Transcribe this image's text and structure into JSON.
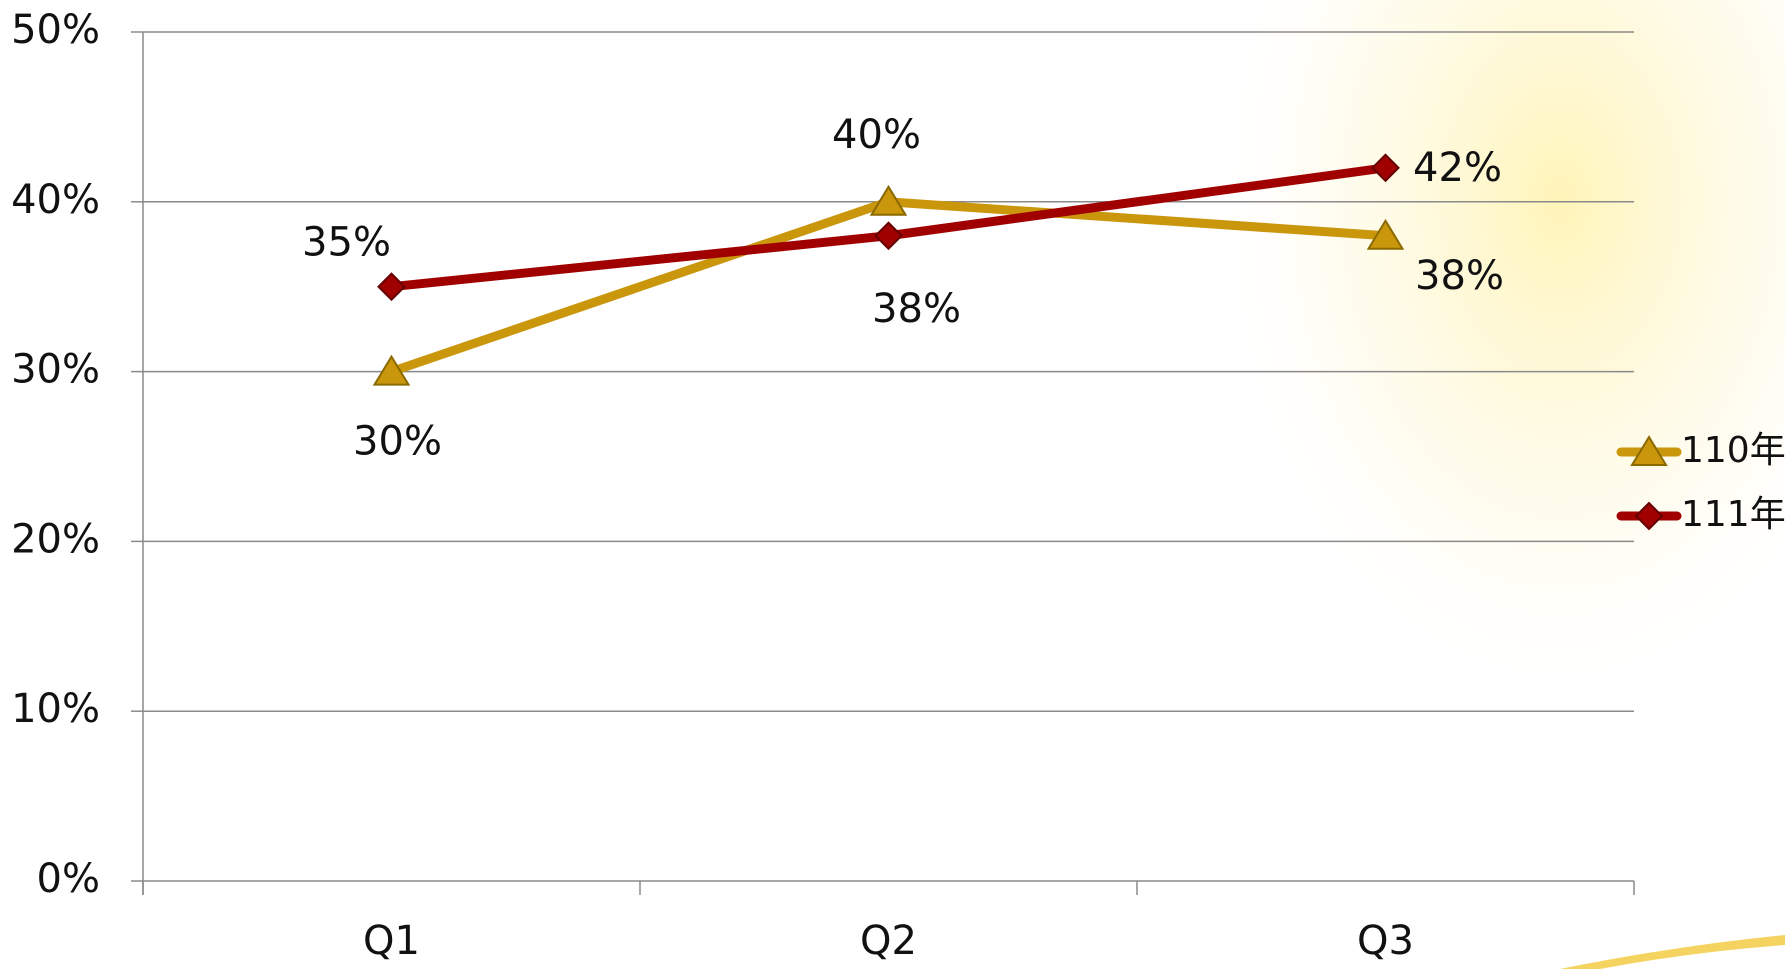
{
  "chart_data": {
    "type": "line",
    "categories": [
      "Q1",
      "Q2",
      "Q3"
    ],
    "series": [
      {
        "name": "110年",
        "color": "#c9960c",
        "values": [
          30,
          40,
          38
        ],
        "value_labels": [
          "30%",
          "40%",
          "38%"
        ]
      },
      {
        "name": "111年",
        "color": "#a00000",
        "values": [
          35,
          38,
          42
        ],
        "value_labels": [
          "35%",
          "38%",
          "42%"
        ]
      }
    ],
    "ylim": [
      0,
      50
    ],
    "yticks": [
      {
        "value": 0,
        "label": "0%"
      },
      {
        "value": 10,
        "label": "10%"
      },
      {
        "value": 20,
        "label": "20%"
      },
      {
        "value": 30,
        "label": "30%"
      },
      {
        "value": 40,
        "label": "40%"
      },
      {
        "value": 50,
        "label": "50%"
      }
    ],
    "grid": true,
    "legend": "right"
  }
}
